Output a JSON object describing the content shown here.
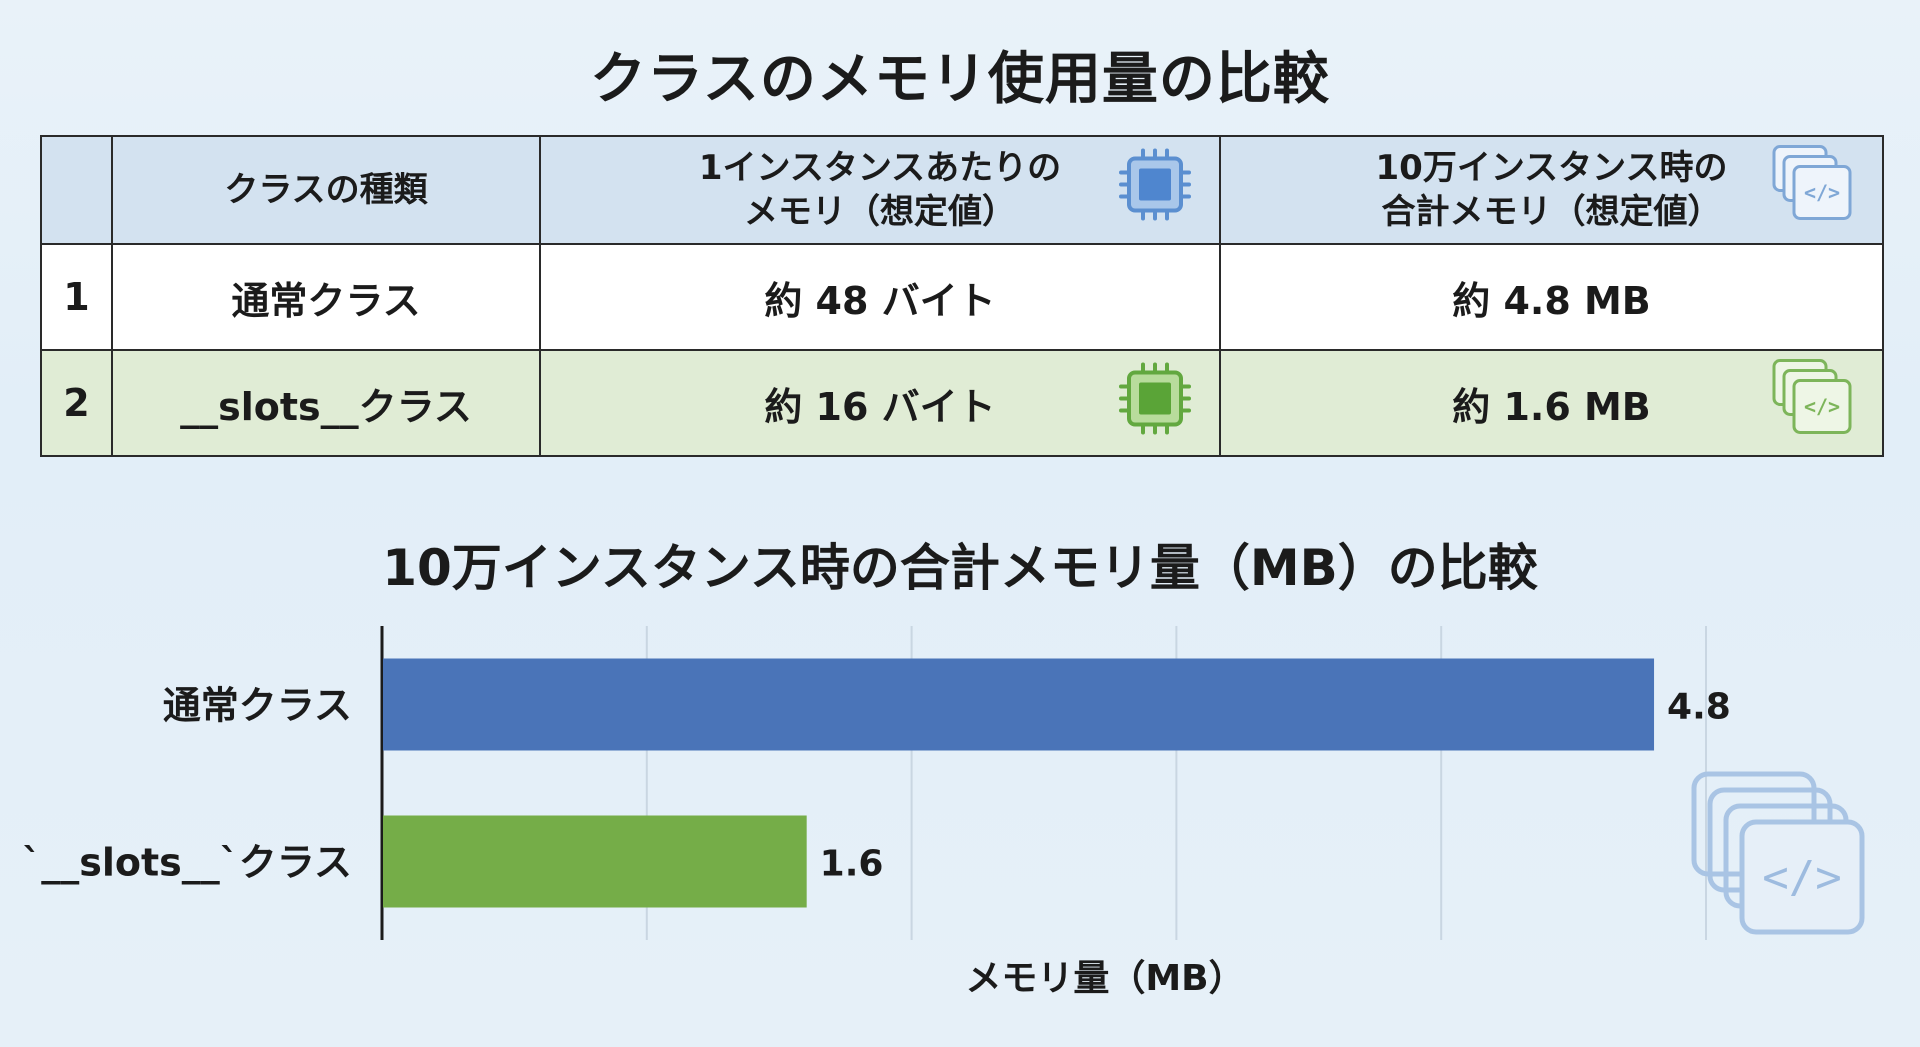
{
  "title": "クラスのメモリ使用量の比較",
  "table": {
    "headers": {
      "index": "",
      "class_type": "クラスの種類",
      "per_instance": [
        "1インスタンスあたりの",
        "メモリ（想定値）"
      ],
      "total": [
        "10万インスタンス時の",
        "合計メモリ（想定値）"
      ]
    },
    "rows": [
      {
        "index": "1",
        "class_type": "通常クラス",
        "per_instance": "約 48 バイト",
        "total": "約 4.8 MB"
      },
      {
        "index": "2",
        "class_type": "__slots__クラス",
        "per_instance": "約 16 バイト",
        "total": "約 1.6 MB"
      }
    ]
  },
  "colors": {
    "normal": "#4a74b8",
    "slots": "#75ad48",
    "icon_blue": "#5b8fd0",
    "icon_green": "#62a83f"
  },
  "icons": {
    "memory_chip": "cpu-chip-icon",
    "code_files": "stacked-code-files-icon"
  },
  "chart_data": {
    "type": "bar",
    "orientation": "horizontal",
    "title": "10万インスタンス時の合計メモリ量（MB）の比較",
    "xlabel": "メモリ量（MB）",
    "ylabel": "",
    "categories": [
      "通常クラス",
      "`__slots__`クラス"
    ],
    "values": [
      4.8,
      1.6
    ],
    "data_labels": [
      "4.8",
      "1.6"
    ],
    "bar_colors": [
      "#4a74b8",
      "#75ad48"
    ],
    "xlim": [
      0,
      5
    ],
    "grid": true,
    "legend": "none"
  }
}
